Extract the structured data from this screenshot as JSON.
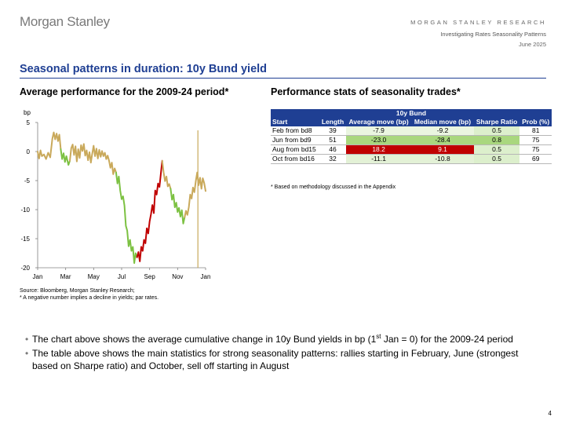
{
  "header": {
    "logo": "Morgan Stanley",
    "firm": "MORGAN STANLEY RESEARCH",
    "report": "Investigating Rates Seasonality Patterns",
    "date": "June 2025"
  },
  "title": "Seasonal patterns in duration: 10y Bund yield",
  "left_heading": "Average performance for the 2009-24 period*",
  "right_heading": "Performance stats of seasonality trades*",
  "chart_data": {
    "type": "line",
    "title": "Average cumulative change in 10y Bund yields",
    "ylabel": "bp",
    "xlabel": "",
    "ylim": [
      -20,
      5
    ],
    "yticks": [
      5,
      0,
      -5,
      -10,
      -15,
      -20
    ],
    "xlim": [
      0,
      12
    ],
    "xtick_labels": [
      "Jan",
      "Mar",
      "May",
      "Jul",
      "Sep",
      "Nov",
      "Jan"
    ],
    "xtick_positions": [
      0,
      2,
      4,
      6,
      8,
      10,
      12
    ],
    "vline_at": 11.45,
    "colors": {
      "base": "#C9A95B",
      "rally": "#7CC142",
      "selloff": "#C00000",
      "vline": "#C9A95B"
    },
    "series": [
      {
        "name": "base",
        "color": "#C9A95B",
        "points": [
          [
            0,
            0
          ],
          [
            0.1,
            -1.2
          ],
          [
            0.2,
            0.2
          ],
          [
            0.3,
            -0.8
          ],
          [
            0.45,
            -0.5
          ],
          [
            0.6,
            -1.3
          ],
          [
            0.75,
            -0.2
          ],
          [
            0.9,
            -1
          ],
          [
            1.05,
            2.2
          ],
          [
            1.15,
            3.3
          ],
          [
            1.25,
            2.1
          ],
          [
            1.35,
            3.1
          ],
          [
            1.45,
            1.8
          ],
          [
            1.55,
            2.9
          ],
          [
            1.65,
            0.4
          ]
        ]
      },
      {
        "name": "rally-feb",
        "color": "#7CC142",
        "points": [
          [
            1.65,
            0.4
          ],
          [
            1.75,
            -1.3
          ],
          [
            1.85,
            -0.3
          ],
          [
            1.95,
            -1.8
          ],
          [
            2.05,
            -0.8
          ],
          [
            2.2,
            -2.3
          ],
          [
            2.3,
            -1.6
          ]
        ]
      },
      {
        "name": "base",
        "color": "#C9A95B",
        "points": [
          [
            2.3,
            -1.6
          ],
          [
            2.4,
            0.6
          ],
          [
            2.5,
            1.2
          ],
          [
            2.6,
            -0.6
          ],
          [
            2.7,
            0.9
          ],
          [
            2.8,
            -1.7
          ],
          [
            2.9,
            0.4
          ],
          [
            3.0,
            -1.1
          ],
          [
            3.1,
            1.1
          ],
          [
            3.2,
            0.1
          ],
          [
            3.3,
            1.3
          ],
          [
            3.4,
            -0.7
          ],
          [
            3.5,
            0.2
          ],
          [
            3.6,
            -1.5
          ],
          [
            3.7,
            -0.1
          ],
          [
            3.8,
            -1.9
          ],
          [
            3.9,
            -0.4
          ],
          [
            4.0,
            1.0
          ],
          [
            4.1,
            -0.8
          ],
          [
            4.2,
            0.5
          ],
          [
            4.3,
            -1.2
          ],
          [
            4.4,
            0.3
          ],
          [
            4.5,
            -0.9
          ],
          [
            4.6,
            0.1
          ],
          [
            4.7,
            -0.8
          ],
          [
            4.8,
            -0.2
          ],
          [
            4.9,
            -1.3
          ],
          [
            5.0,
            -0.7
          ],
          [
            5.1,
            -1.6
          ],
          [
            5.2,
            -2.8
          ],
          [
            5.3,
            -1.9
          ],
          [
            5.4,
            -3.9
          ],
          [
            5.5,
            -2.9
          ],
          [
            5.6,
            -3.6
          ]
        ]
      },
      {
        "name": "rally-jun",
        "color": "#7CC142",
        "points": [
          [
            5.6,
            -3.6
          ],
          [
            5.7,
            -5.5
          ],
          [
            5.8,
            -4.3
          ],
          [
            5.9,
            -6.7
          ],
          [
            6.0,
            -8.2
          ],
          [
            6.1,
            -7.7
          ],
          [
            6.2,
            -9.3
          ],
          [
            6.3,
            -12.8
          ],
          [
            6.4,
            -13.6
          ],
          [
            6.5,
            -16.3
          ],
          [
            6.6,
            -15.2
          ],
          [
            6.7,
            -17.1
          ],
          [
            6.8,
            -16.4
          ],
          [
            6.9,
            -19.2
          ],
          [
            7.0,
            -17.5
          ],
          [
            7.1,
            -18.2
          ]
        ]
      },
      {
        "name": "selloff-aug",
        "color": "#C00000",
        "points": [
          [
            7.1,
            -18.2
          ],
          [
            7.2,
            -17.3
          ],
          [
            7.3,
            -18.9
          ],
          [
            7.4,
            -16.4
          ],
          [
            7.5,
            -17.1
          ],
          [
            7.6,
            -15.2
          ],
          [
            7.7,
            -15.8
          ],
          [
            7.8,
            -13.2
          ],
          [
            7.9,
            -14.1
          ],
          [
            8.0,
            -12.0
          ],
          [
            8.1,
            -10.8
          ],
          [
            8.2,
            -9.2
          ],
          [
            8.3,
            -10.6
          ],
          [
            8.4,
            -6.7
          ],
          [
            8.5,
            -7.4
          ],
          [
            8.6,
            -5.5
          ],
          [
            8.7,
            -6.1
          ],
          [
            8.8,
            -3.9
          ],
          [
            8.9,
            -1.6
          ]
        ]
      },
      {
        "name": "base",
        "color": "#C9A95B",
        "points": [
          [
            8.9,
            -1.6
          ],
          [
            9.0,
            -3.6
          ],
          [
            9.1,
            -5.1
          ],
          [
            9.2,
            -4.3
          ],
          [
            9.3,
            -6.0
          ],
          [
            9.4,
            -5.6
          ],
          [
            9.5,
            -6.4
          ]
        ]
      },
      {
        "name": "rally-oct",
        "color": "#7CC142",
        "points": [
          [
            9.5,
            -6.4
          ],
          [
            9.6,
            -8.3
          ],
          [
            9.7,
            -7.4
          ],
          [
            9.8,
            -9.6
          ],
          [
            9.9,
            -8.8
          ],
          [
            10.0,
            -10.4
          ],
          [
            10.1,
            -9.7
          ],
          [
            10.2,
            -11.2
          ],
          [
            10.3,
            -10.1
          ],
          [
            10.4,
            -12.4
          ],
          [
            10.5,
            -11.3
          ]
        ]
      },
      {
        "name": "base",
        "color": "#C9A95B",
        "points": [
          [
            10.5,
            -11.3
          ],
          [
            10.6,
            -10.2
          ],
          [
            10.7,
            -10.9
          ],
          [
            10.8,
            -9.6
          ],
          [
            10.9,
            -7.4
          ],
          [
            11.0,
            -8.1
          ],
          [
            11.1,
            -6.2
          ],
          [
            11.2,
            -7.0
          ],
          [
            11.3,
            -5.1
          ],
          [
            11.4,
            -3.6
          ],
          [
            11.5,
            -5.8
          ],
          [
            11.6,
            -4.5
          ],
          [
            11.7,
            -6.4
          ],
          [
            11.8,
            -4.6
          ],
          [
            11.9,
            -5.4
          ],
          [
            12.0,
            -6.8
          ]
        ]
      }
    ]
  },
  "source": {
    "line1": "Source: Bloomberg, Morgan Stanley Research;",
    "line2": "* A negative number implies a decline in yields; par rates."
  },
  "table": {
    "band": "10y Bund",
    "columns": [
      "Start",
      "Length",
      "Average move (bp)",
      "Median move (bp)",
      "Sharpe Ratio",
      "Prob (%)"
    ],
    "rows": [
      {
        "start": "Feb from bd8",
        "length": "39",
        "avg": "-7.9",
        "median": "-9.2",
        "sharpe": "0.5",
        "prob": "81",
        "avg_bg": "#EAF5E0",
        "median_bg": "#EAF5E0",
        "sharpe_bg": "#DCEFCC"
      },
      {
        "start": "Jun from bd9",
        "length": "51",
        "avg": "-23.0",
        "median": "-28.4",
        "sharpe": "0.8",
        "prob": "75",
        "avg_bg": "#A9D77E",
        "median_bg": "#A9D77E",
        "sharpe_bg": "#A9D77E"
      },
      {
        "start": "Aug from bd15",
        "length": "46",
        "avg": "18.2",
        "median": "9.1",
        "sharpe": "0.5",
        "prob": "75",
        "avg_bg": "#C00000",
        "median_bg": "#C00000",
        "sharpe_bg": "#DCEFCC"
      },
      {
        "start": "Oct from bd16",
        "length": "32",
        "avg": "-11.1",
        "median": "-10.8",
        "sharpe": "0.5",
        "prob": "69",
        "avg_bg": "#E3F1D6",
        "median_bg": "#E3F1D6",
        "sharpe_bg": "#DCEFCC"
      }
    ],
    "note": "* Based on methodology discussed in the Appendix"
  },
  "bullets": {
    "b1_pre": "The chart above shows the average cumulative change in 10y Bund yields in bp (1",
    "b1_sup": "st",
    "b1_post": " Jan = 0) for the 2009-24 period",
    "b2": "The table above shows the main statistics for strong seasonality patterns: rallies starting in February, June (strongest based on Sharpe ratio) and October, sell off starting in August"
  },
  "page_number": "4"
}
